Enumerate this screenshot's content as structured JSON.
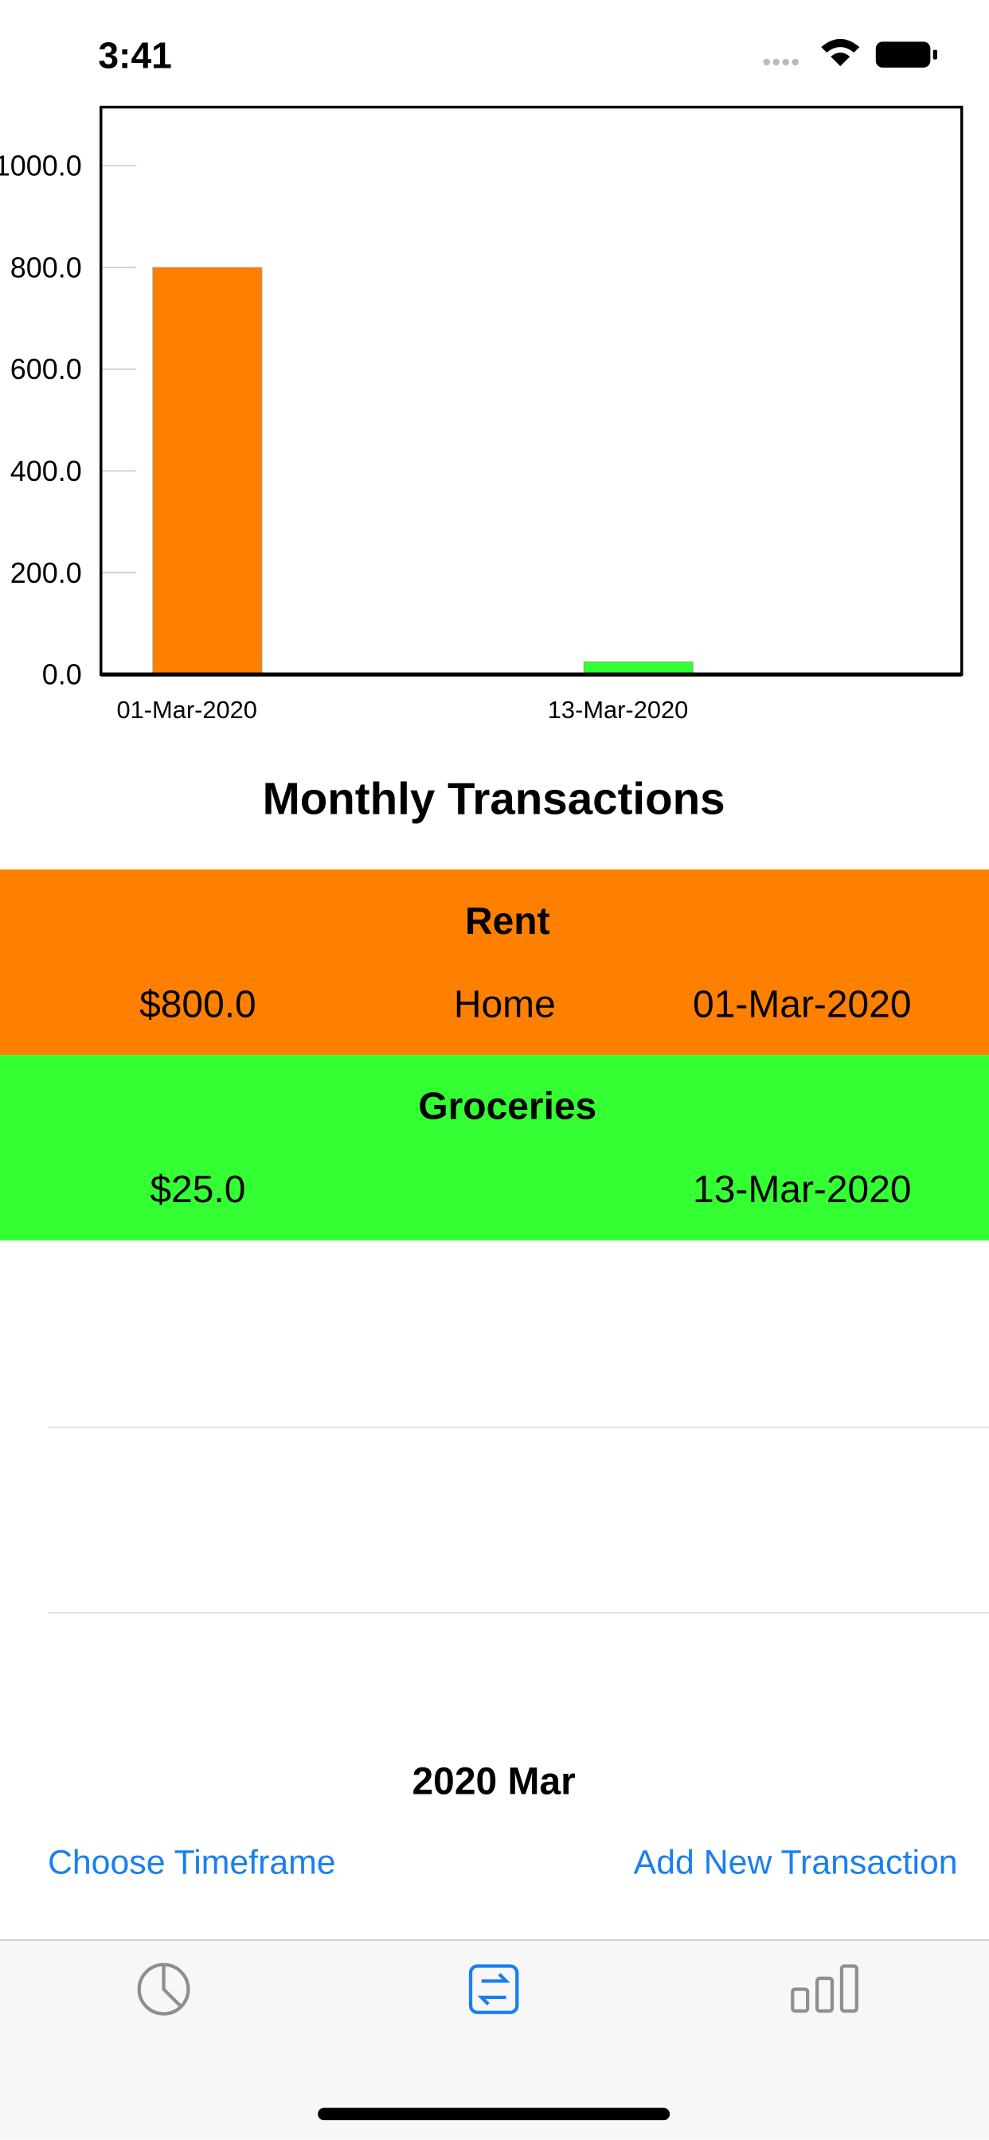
{
  "status_bar": {
    "time": "3:41"
  },
  "chart_data": {
    "type": "bar",
    "categories": [
      "01-Mar-2020",
      "13-Mar-2020"
    ],
    "values": [
      800,
      25
    ],
    "colors": [
      "#ff8000",
      "#33ff33"
    ],
    "ylim": [
      0,
      1115
    ],
    "yticks": [
      {
        "value": 0,
        "label": "0.0"
      },
      {
        "value": 200,
        "label": "200.0"
      },
      {
        "value": 400,
        "label": "400.0"
      },
      {
        "value": 600,
        "label": "600.0"
      },
      {
        "value": 800,
        "label": "800.0"
      },
      {
        "value": 1000,
        "label": "1000.0"
      }
    ]
  },
  "section_title": "Monthly Transactions",
  "transactions": [
    {
      "title": "Rent",
      "amount": "$800.0",
      "category": "Home",
      "date": "01-Mar-2020",
      "color": "#ff8000"
    },
    {
      "title": "Groceries",
      "amount": "$25.0",
      "date": "13-Mar-2020",
      "color": "#33ff33"
    }
  ],
  "footer": {
    "period": "2020 Mar",
    "left_button": "Choose Timeframe",
    "right_button": "Add New Transaction"
  }
}
